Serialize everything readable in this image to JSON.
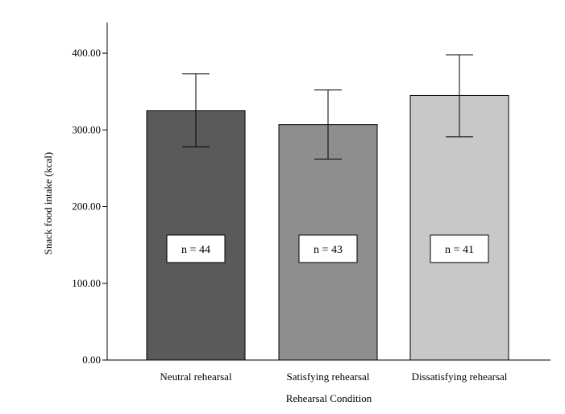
{
  "chart_data": {
    "type": "bar",
    "title": "",
    "xlabel": "Rehearsal Condition",
    "ylabel": "Snack food intake (kcal)",
    "ylim": [
      0,
      440
    ],
    "yticks": [
      0,
      100,
      200,
      300,
      400
    ],
    "ytick_labels": [
      "0.00",
      "100.00",
      "200.00",
      "300.00",
      "400.00"
    ],
    "grid": false,
    "legend": "none",
    "categories": [
      "Neutral rehearsal",
      "Satisfying rehearsal",
      "Dissatisfying rehearsal"
    ],
    "values": [
      325,
      307,
      345
    ],
    "error_low": [
      278,
      262,
      291
    ],
    "error_high": [
      373,
      352,
      398
    ],
    "sample_labels": [
      "n = 44",
      "n = 43",
      "n = 41"
    ],
    "sample_label_value": 145,
    "colors": [
      "#5a5a5a",
      "#8e8e8e",
      "#c8c8c8"
    ]
  }
}
